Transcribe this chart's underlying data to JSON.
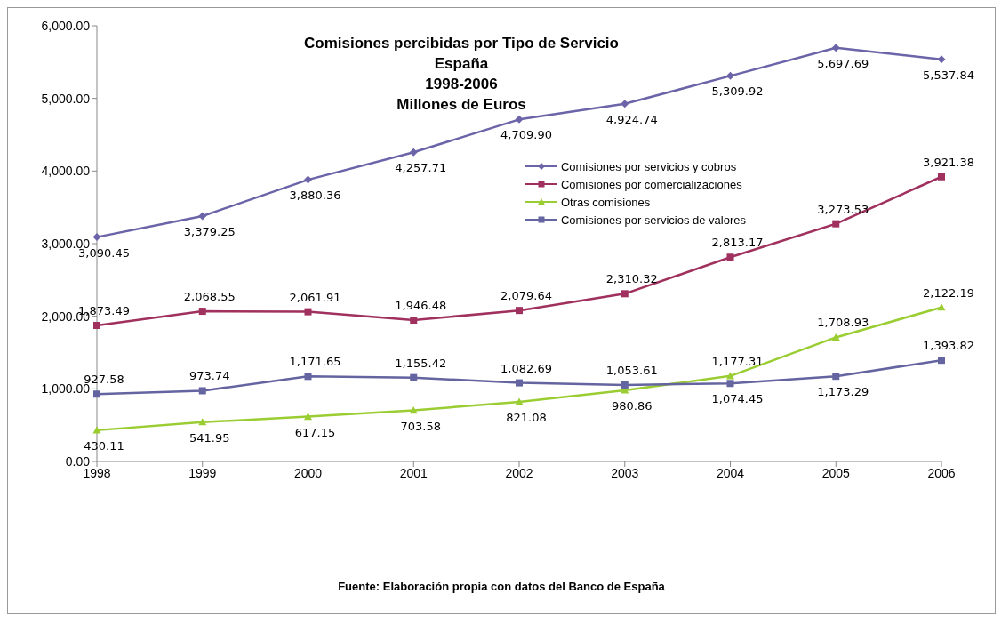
{
  "chart_data": {
    "type": "line",
    "title": "Comisiones percibidas por Tipo de Servicio\nEspaña\n1998-2006\nMillones de Euros",
    "categories": [
      "1998",
      "1999",
      "2000",
      "2001",
      "2002",
      "2003",
      "2004",
      "2005",
      "2006"
    ],
    "series": [
      {
        "name": "Comisiones por servicios y cobros",
        "color": "#6b64a8",
        "marker": "diamond",
        "values": [
          3090.45,
          3379.25,
          3880.36,
          4257.71,
          4709.9,
          4924.74,
          5309.92,
          5697.69,
          5537.84
        ],
        "value_labels": [
          "3,090.45",
          "3,379.25",
          "3,880.36",
          "4,257.71",
          "4,709.90",
          "4,924.74",
          "5,309.92",
          "5,697.69",
          "5,537.84"
        ]
      },
      {
        "name": "Comisiones por comercializaciones",
        "color": "#a0305e",
        "marker": "square",
        "values": [
          1873.49,
          2068.55,
          2061.91,
          1946.48,
          2079.64,
          2310.32,
          2813.17,
          3273.53,
          3921.38
        ],
        "value_labels": [
          "1,873.49",
          "2,068.55",
          "2,061.91",
          "1,946.48",
          "2,079.64",
          "2,310.32",
          "2,813.17",
          "3,273.53",
          "3,921.38"
        ]
      },
      {
        "name": "Otras comisiones",
        "color": "#9acd32",
        "marker": "triangle",
        "values": [
          430.11,
          541.95,
          617.15,
          703.58,
          821.08,
          980.86,
          1177.31,
          1708.93,
          2122.19
        ],
        "value_labels": [
          "430.11",
          "541.95",
          "617.15",
          "703.58",
          "821.08",
          "980.86",
          "1,177.31",
          "1,708.93",
          "2,122.19"
        ]
      },
      {
        "name": "Comisiones por servicios de valores",
        "color": "#6464a0",
        "marker": "square",
        "values": [
          927.58,
          973.74,
          1171.65,
          1155.42,
          1082.69,
          1053.61,
          1074.45,
          1173.29,
          1393.82
        ],
        "value_labels": [
          "927.58",
          "973.74",
          "1,171.65",
          "1,155.42",
          "1,082.69",
          "1,053.61",
          "1,074.45",
          "1,173.29",
          "1,393.82"
        ]
      }
    ],
    "ylim": [
      0,
      6000
    ],
    "yticks": [
      {
        "value": 0,
        "label": "0.00"
      },
      {
        "value": 1000,
        "label": "1,000.00"
      },
      {
        "value": 2000,
        "label": "2,000.00"
      },
      {
        "value": 3000,
        "label": "3,000.00"
      },
      {
        "value": 4000,
        "label": "4,000.00"
      },
      {
        "value": 5000,
        "label": "5,000.00"
      },
      {
        "value": 6000,
        "label": "6,000.00"
      }
    ],
    "grid": false,
    "legend": "top right",
    "annotations": [
      "Fuente: Elaboración propia con datos del Banco de España"
    ]
  }
}
